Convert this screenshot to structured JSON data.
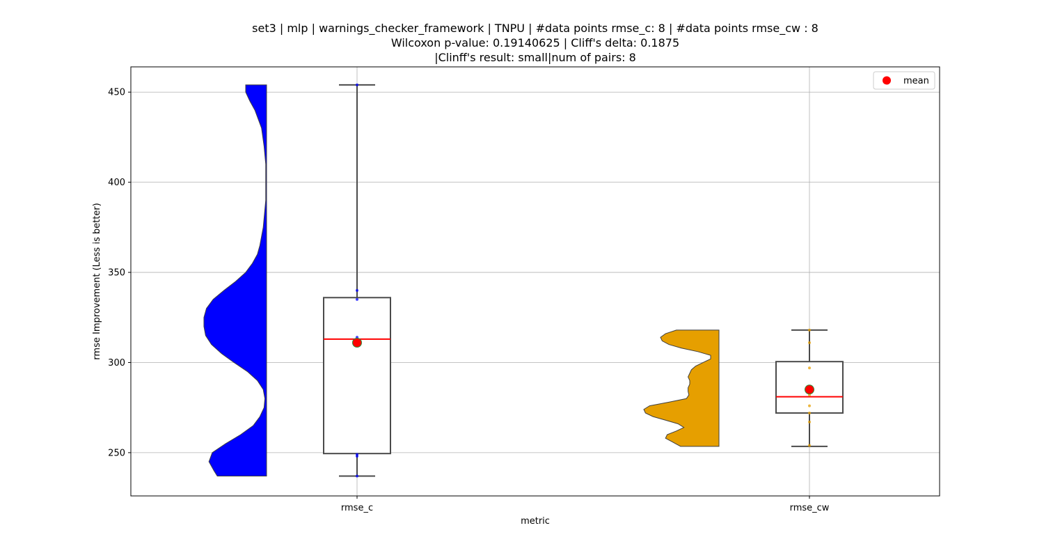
{
  "chart_data": {
    "type": "violin_box",
    "title_lines": [
      "set3 | mlp | warnings_checker_framework | TNPU | #data points rmse_c: 8 | #data points rmse_cw : 8",
      "Wilcoxon p-value: 0.19140625 | Cliff's delta: 0.1875",
      "|Clinff's result: small|num of pairs: 8"
    ],
    "xlabel": "metric",
    "ylabel": "rmse Improvement (Less is better)",
    "ylim": [
      226,
      464
    ],
    "yticks": [
      250,
      300,
      350,
      400,
      450
    ],
    "grid": true,
    "legend": {
      "position": "top-right",
      "entries": [
        {
          "label": "mean",
          "color": "#ff0000"
        }
      ]
    },
    "categories": [
      "rmse_c",
      "rmse_cw"
    ],
    "series": [
      {
        "category": "rmse_c",
        "violin_color": "#0000ff",
        "box": {
          "whisker_low": 237,
          "q1": 249.5,
          "median": 313,
          "q3": 336,
          "whisker_high": 454
        },
        "mean": 311,
        "points": [
          237,
          248,
          249,
          311,
          314,
          335,
          340,
          454
        ],
        "violin_profile": [
          [
            237,
            0.59
          ],
          [
            240,
            0.63
          ],
          [
            245,
            0.69
          ],
          [
            250,
            0.65
          ],
          [
            255,
            0.49
          ],
          [
            260,
            0.31
          ],
          [
            265,
            0.16
          ],
          [
            270,
            0.08
          ],
          [
            275,
            0.03
          ],
          [
            280,
            0.02
          ],
          [
            285,
            0.04
          ],
          [
            290,
            0.11
          ],
          [
            295,
            0.23
          ],
          [
            300,
            0.39
          ],
          [
            305,
            0.54
          ],
          [
            310,
            0.66
          ],
          [
            315,
            0.73
          ],
          [
            320,
            0.75
          ],
          [
            325,
            0.75
          ],
          [
            330,
            0.72
          ],
          [
            335,
            0.64
          ],
          [
            340,
            0.51
          ],
          [
            345,
            0.37
          ],
          [
            350,
            0.25
          ],
          [
            355,
            0.17
          ],
          [
            360,
            0.11
          ],
          [
            365,
            0.08
          ],
          [
            370,
            0.06
          ],
          [
            375,
            0.04
          ],
          [
            380,
            0.03
          ],
          [
            390,
            0.01
          ],
          [
            400,
            0.01
          ],
          [
            410,
            0.01
          ],
          [
            420,
            0.03
          ],
          [
            430,
            0.06
          ],
          [
            440,
            0.14
          ],
          [
            445,
            0.2
          ],
          [
            450,
            0.25
          ],
          [
            454,
            0.25
          ]
        ]
      },
      {
        "category": "rmse_cw",
        "violin_color": "#e69f00",
        "box": {
          "whisker_low": 253.5,
          "q1": 272,
          "median": 281,
          "q3": 300.5,
          "whisker_high": 318
        },
        "mean": 285,
        "points": [
          254,
          267,
          272,
          276,
          282,
          297,
          311,
          318
        ],
        "violin_profile": [
          [
            253.5,
            0.46
          ],
          [
            256,
            0.56
          ],
          [
            258,
            0.64
          ],
          [
            260,
            0.62
          ],
          [
            262,
            0.51
          ],
          [
            264,
            0.42
          ],
          [
            266,
            0.49
          ],
          [
            268,
            0.64
          ],
          [
            270,
            0.79
          ],
          [
            272,
            0.88
          ],
          [
            274,
            0.9
          ],
          [
            276,
            0.83
          ],
          [
            278,
            0.6
          ],
          [
            280,
            0.39
          ],
          [
            282,
            0.36
          ],
          [
            284,
            0.37
          ],
          [
            286,
            0.37
          ],
          [
            288,
            0.35
          ],
          [
            290,
            0.35
          ],
          [
            292,
            0.37
          ],
          [
            294,
            0.35
          ],
          [
            296,
            0.33
          ],
          [
            298,
            0.28
          ],
          [
            300,
            0.19
          ],
          [
            302,
            0.1
          ],
          [
            304,
            0.1
          ],
          [
            306,
            0.25
          ],
          [
            308,
            0.45
          ],
          [
            310,
            0.6
          ],
          [
            312,
            0.68
          ],
          [
            314,
            0.7
          ],
          [
            316,
            0.64
          ],
          [
            318,
            0.51
          ]
        ]
      }
    ]
  }
}
